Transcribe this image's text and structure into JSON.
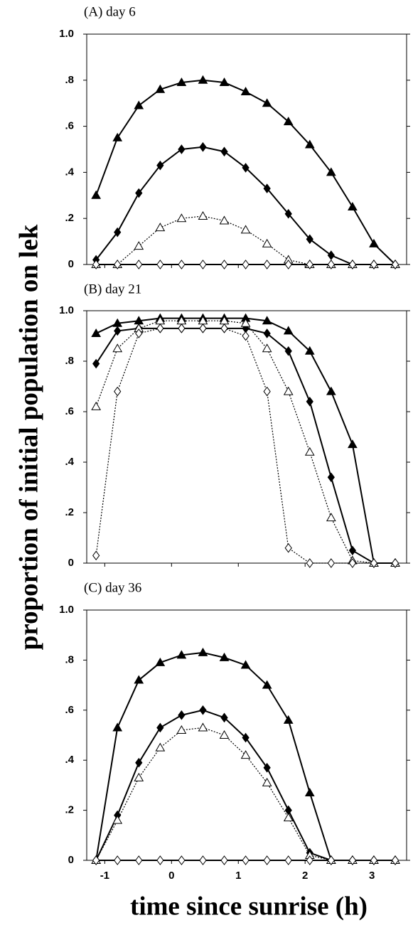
{
  "figure": {
    "ylabel": "proportion of initial population on lek",
    "xlabel": "time since sunrise (h)"
  },
  "chart_data": [
    {
      "type": "line",
      "title": "(A) day 6",
      "x": [
        -1.13,
        -0.81,
        -0.49,
        -0.17,
        0.15,
        0.47,
        0.79,
        1.11,
        1.43,
        1.75,
        2.07,
        2.39,
        2.71,
        3.03,
        3.35
      ],
      "xlim": [
        -1.27,
        3.52
      ],
      "xticks": [
        -1,
        0,
        1,
        2,
        3
      ],
      "ylim": [
        0,
        1
      ],
      "yticks": [
        0,
        {
          "value": 0.2,
          "label": ".2"
        },
        {
          "value": 0.4,
          "label": ".4"
        },
        {
          "value": 0.6,
          "label": ".6"
        },
        {
          "value": 0.8,
          "label": ".8"
        },
        {
          "value": 1,
          "label": "1.0"
        }
      ],
      "series": [
        {
          "color": "#000000",
          "marker": "triangle",
          "filled": true,
          "line_style": "solid",
          "values": [
            0.3,
            0.55,
            0.69,
            0.76,
            0.79,
            0.8,
            0.79,
            0.75,
            0.7,
            0.62,
            0.52,
            0.4,
            0.25,
            0.09,
            0
          ]
        },
        {
          "color": "#000000",
          "marker": "diamond",
          "filled": true,
          "line_style": "solid",
          "values": [
            0.02,
            0.14,
            0.31,
            0.43,
            0.5,
            0.51,
            0.49,
            0.42,
            0.33,
            0.22,
            0.11,
            0.04,
            0,
            0,
            0
          ]
        },
        {
          "color": "#000000",
          "marker": "triangle",
          "filled": false,
          "line_style": "dotted",
          "values": [
            0,
            0,
            0.08,
            0.16,
            0.2,
            0.21,
            0.19,
            0.15,
            0.09,
            0.02,
            0,
            0,
            0,
            0,
            0
          ]
        },
        {
          "color": "#000000",
          "marker": "diamond",
          "filled": false,
          "line_style": "solid",
          "values": [
            0,
            0,
            0,
            0,
            0,
            0,
            0,
            0,
            0,
            0,
            0,
            0,
            0,
            0,
            0
          ]
        }
      ]
    },
    {
      "type": "line",
      "title": "(B) day 21",
      "x": [
        -1.13,
        -0.81,
        -0.49,
        -0.17,
        0.15,
        0.47,
        0.79,
        1.11,
        1.43,
        1.75,
        2.07,
        2.39,
        2.71,
        3.03,
        3.35
      ],
      "xlim": [
        -1.27,
        3.52
      ],
      "xticks": [
        -1,
        0,
        1,
        2,
        3
      ],
      "ylim": [
        0,
        1
      ],
      "yticks": [
        0,
        {
          "value": 0.2,
          "label": ".2"
        },
        {
          "value": 0.4,
          "label": ".4"
        },
        {
          "value": 0.6,
          "label": ".6"
        },
        {
          "value": 0.8,
          "label": ".8"
        },
        {
          "value": 1,
          "label": "1.0"
        }
      ],
      "series": [
        {
          "color": "#000000",
          "marker": "triangle",
          "filled": true,
          "line_style": "solid",
          "values": [
            0.91,
            0.95,
            0.96,
            0.97,
            0.97,
            0.97,
            0.97,
            0.97,
            0.96,
            0.92,
            0.84,
            0.68,
            0.47,
            0,
            0
          ]
        },
        {
          "color": "#000000",
          "marker": "diamond",
          "filled": true,
          "line_style": "solid",
          "values": [
            0.79,
            0.92,
            0.93,
            0.93,
            0.93,
            0.93,
            0.93,
            0.93,
            0.91,
            0.84,
            0.64,
            0.34,
            0.05,
            0,
            0
          ]
        },
        {
          "color": "#000000",
          "marker": "triangle",
          "filled": false,
          "line_style": "dotted",
          "values": [
            0.62,
            0.85,
            0.93,
            0.96,
            0.96,
            0.96,
            0.96,
            0.95,
            0.85,
            0.68,
            0.44,
            0.18,
            0.01,
            0,
            0
          ]
        },
        {
          "color": "#000000",
          "marker": "diamond",
          "filled": false,
          "line_style": "dotted",
          "values": [
            0.03,
            0.68,
            0.91,
            0.93,
            0.93,
            0.93,
            0.93,
            0.9,
            0.68,
            0.06,
            0,
            0,
            0,
            0,
            0
          ]
        }
      ]
    },
    {
      "type": "line",
      "title": "(C) day 36",
      "x": [
        -1.13,
        -0.81,
        -0.49,
        -0.17,
        0.15,
        0.47,
        0.79,
        1.11,
        1.43,
        1.75,
        2.07,
        2.39,
        2.71,
        3.03,
        3.35
      ],
      "xlim": [
        -1.27,
        3.52
      ],
      "xticks": [
        -1,
        0,
        1,
        2,
        3
      ],
      "ylim": [
        0,
        1
      ],
      "yticks": [
        0,
        {
          "value": 0.2,
          "label": ".2"
        },
        {
          "value": 0.4,
          "label": ".4"
        },
        {
          "value": 0.6,
          "label": ".6"
        },
        {
          "value": 0.8,
          "label": ".8"
        },
        {
          "value": 1,
          "label": "1.0"
        }
      ],
      "series": [
        {
          "color": "#000000",
          "marker": "triangle",
          "filled": true,
          "line_style": "solid",
          "values": [
            0,
            0.53,
            0.72,
            0.79,
            0.82,
            0.83,
            0.81,
            0.78,
            0.7,
            0.56,
            0.27,
            0,
            0,
            0,
            0
          ]
        },
        {
          "color": "#000000",
          "marker": "diamond",
          "filled": true,
          "line_style": "solid",
          "values": [
            0,
            0.18,
            0.39,
            0.53,
            0.58,
            0.6,
            0.57,
            0.49,
            0.37,
            0.2,
            0.03,
            0,
            0,
            0,
            0
          ]
        },
        {
          "color": "#000000",
          "marker": "triangle",
          "filled": false,
          "line_style": "dotted",
          "values": [
            0,
            0.16,
            0.33,
            0.45,
            0.52,
            0.53,
            0.5,
            0.42,
            0.31,
            0.17,
            0.02,
            0,
            0,
            0,
            0
          ]
        },
        {
          "color": "#000000",
          "marker": "diamond",
          "filled": false,
          "line_style": "solid",
          "values": [
            0,
            0,
            0,
            0,
            0,
            0,
            0,
            0,
            0,
            0,
            0,
            0,
            0,
            0,
            0
          ]
        }
      ]
    }
  ]
}
